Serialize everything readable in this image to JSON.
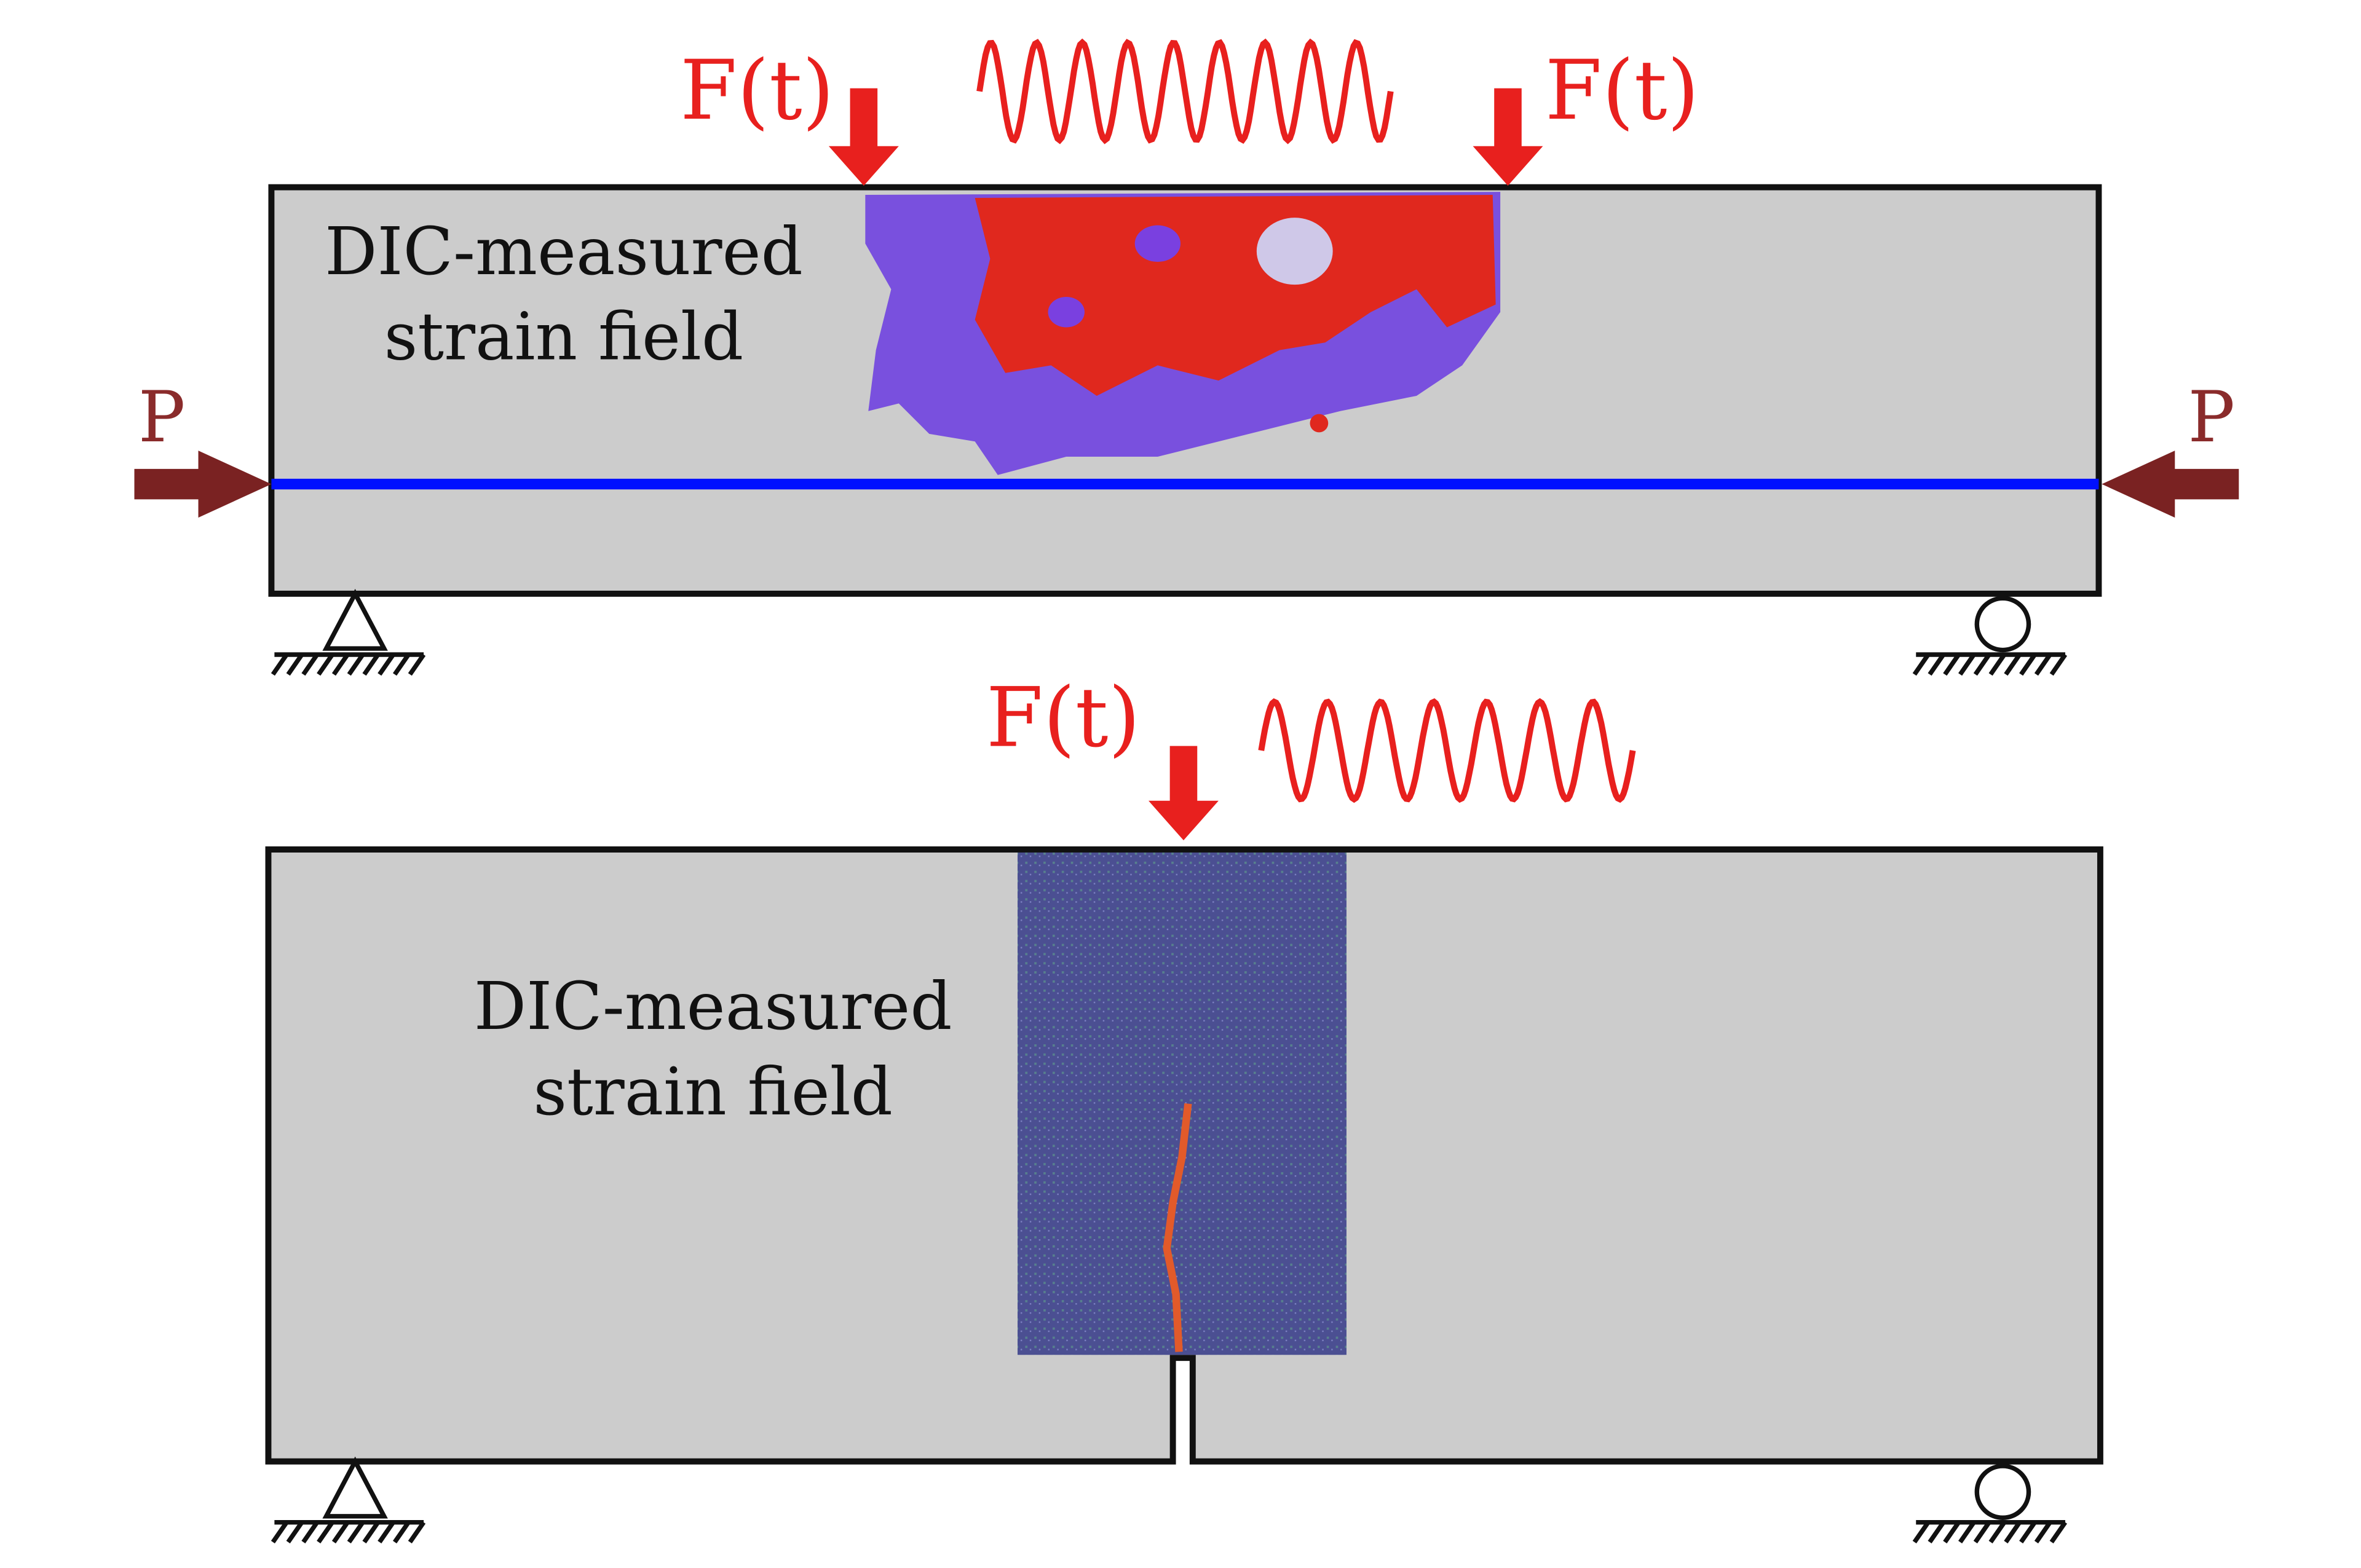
{
  "top_beam": {
    "load_labels": [
      "F(t)",
      "F(t)"
    ],
    "axial_labels": [
      "P",
      "P"
    ],
    "caption": [
      "DIC-measured",
      "strain field"
    ]
  },
  "bottom_beam": {
    "load_label": "F(t)",
    "caption": [
      "DIC-measured",
      "strain field"
    ]
  }
}
